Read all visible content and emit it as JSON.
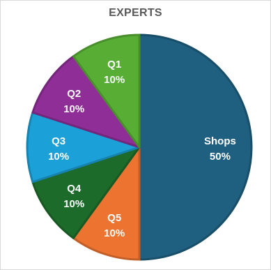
{
  "chart_data": {
    "type": "pie",
    "title": "EXPERTS",
    "categories": [
      "Shops",
      "Q5",
      "Q4",
      "Q3",
      "Q2",
      "Q1"
    ],
    "values": [
      50,
      10,
      10,
      10,
      10,
      10
    ],
    "value_labels": [
      "50%",
      "10%",
      "10%",
      "10%",
      "10%",
      "10%"
    ],
    "colors": [
      "#1f5f80",
      "#ec7330",
      "#1d6b2a",
      "#1ca0d8",
      "#8e2e96",
      "#58ad35"
    ],
    "start_angle_deg": 0,
    "direction": "clockwise",
    "legend": "none"
  }
}
